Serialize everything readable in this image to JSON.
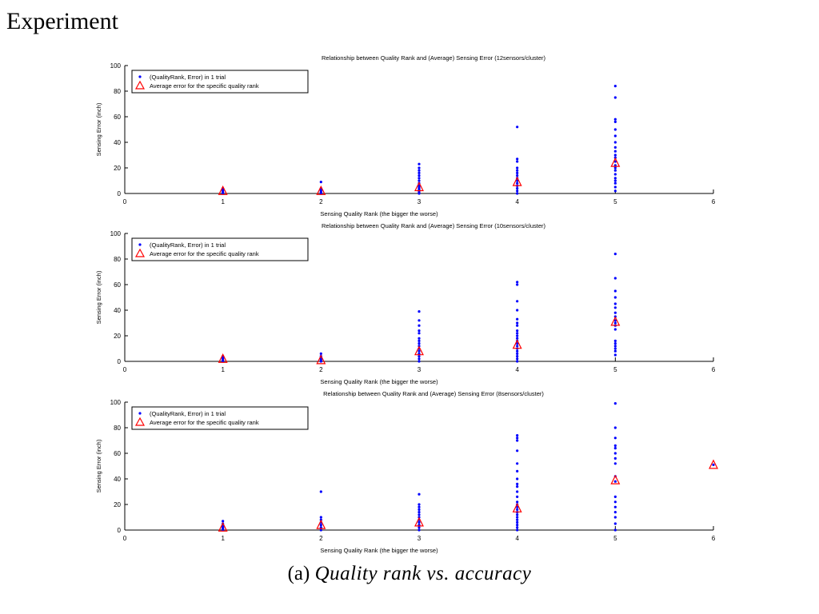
{
  "page": {
    "heading": "Experiment",
    "caption_label": "(a)",
    "caption_text": "Quality rank vs. accuracy"
  },
  "colors": {
    "points": "#0000ff",
    "averages": "#ff0000",
    "axes": "#000000"
  },
  "chart_data": [
    {
      "type": "scatter",
      "title": "Relationship between Quality Rank and (Average) Sensing Error (12sensors/cluster)",
      "xlabel": "Sensing Quality Rank (the bigger the worse)",
      "ylabel": "Sensing Error (inch)",
      "xlim": [
        0,
        6
      ],
      "ylim": [
        0,
        100
      ],
      "xticks": [
        "0",
        "1",
        "2",
        "3",
        "4",
        "5",
        "6"
      ],
      "yticks": [
        "0",
        "20",
        "40",
        "60",
        "80",
        "100"
      ],
      "legend": [
        "(QualityRank, Error) in 1 trial",
        "Average error for the specific quality rank"
      ],
      "legend_position": "top-left",
      "series": [
        {
          "marker": "dot",
          "points": [
            [
              1,
              0
            ],
            [
              1,
              1
            ],
            [
              1,
              2
            ],
            [
              1,
              3
            ],
            [
              1,
              4
            ],
            [
              2,
              0
            ],
            [
              2,
              1
            ],
            [
              2,
              2
            ],
            [
              2,
              3
            ],
            [
              2,
              4
            ],
            [
              2,
              9
            ],
            [
              3,
              0
            ],
            [
              3,
              1
            ],
            [
              3,
              2
            ],
            [
              3,
              3
            ],
            [
              3,
              4
            ],
            [
              3,
              5
            ],
            [
              3,
              6
            ],
            [
              3,
              8
            ],
            [
              3,
              10
            ],
            [
              3,
              12
            ],
            [
              3,
              14
            ],
            [
              3,
              16
            ],
            [
              3,
              18
            ],
            [
              3,
              20
            ],
            [
              3,
              23
            ],
            [
              4,
              0
            ],
            [
              4,
              2
            ],
            [
              4,
              4
            ],
            [
              4,
              6
            ],
            [
              4,
              8
            ],
            [
              4,
              10
            ],
            [
              4,
              12
            ],
            [
              4,
              14
            ],
            [
              4,
              16
            ],
            [
              4,
              18
            ],
            [
              4,
              20
            ],
            [
              4,
              25
            ],
            [
              4,
              27
            ],
            [
              4,
              52
            ],
            [
              5,
              2
            ],
            [
              5,
              5
            ],
            [
              5,
              8
            ],
            [
              5,
              10
            ],
            [
              5,
              12
            ],
            [
              5,
              15
            ],
            [
              5,
              18
            ],
            [
              5,
              20
            ],
            [
              5,
              22
            ],
            [
              5,
              25
            ],
            [
              5,
              28
            ],
            [
              5,
              30
            ],
            [
              5,
              33
            ],
            [
              5,
              36
            ],
            [
              5,
              40
            ],
            [
              5,
              45
            ],
            [
              5,
              50
            ],
            [
              5,
              56
            ],
            [
              5,
              58
            ],
            [
              5,
              75
            ],
            [
              5,
              84
            ]
          ]
        },
        {
          "marker": "triangle",
          "points": [
            [
              1,
              2
            ],
            [
              2,
              2
            ],
            [
              3,
              5
            ],
            [
              4,
              9
            ],
            [
              5,
              24
            ]
          ]
        }
      ]
    },
    {
      "type": "scatter",
      "title": "Relationship between Quality Rank and (Average) Sensing Error (10sensors/cluster)",
      "xlabel": "Sensing Quality Rank (the bigger the worse)",
      "ylabel": "Sensing Error (inch)",
      "xlim": [
        0,
        6
      ],
      "ylim": [
        0,
        100
      ],
      "xticks": [
        "0",
        "1",
        "2",
        "3",
        "4",
        "5",
        "6"
      ],
      "yticks": [
        "0",
        "20",
        "40",
        "60",
        "80",
        "100"
      ],
      "legend": [
        "(QualityRank, Error) in 1 trial",
        "Average error for the specific quality rank"
      ],
      "legend_position": "top-left",
      "series": [
        {
          "marker": "dot",
          "points": [
            [
              1,
              0
            ],
            [
              1,
              1
            ],
            [
              1,
              2
            ],
            [
              1,
              3
            ],
            [
              1,
              4
            ],
            [
              2,
              0
            ],
            [
              2,
              1
            ],
            [
              2,
              2
            ],
            [
              2,
              3
            ],
            [
              2,
              4
            ],
            [
              2,
              6
            ],
            [
              3,
              0
            ],
            [
              3,
              2
            ],
            [
              3,
              4
            ],
            [
              3,
              6
            ],
            [
              3,
              8
            ],
            [
              3,
              10
            ],
            [
              3,
              12
            ],
            [
              3,
              14
            ],
            [
              3,
              16
            ],
            [
              3,
              18
            ],
            [
              3,
              22
            ],
            [
              3,
              24
            ],
            [
              3,
              28
            ],
            [
              3,
              32
            ],
            [
              3,
              39
            ],
            [
              4,
              0
            ],
            [
              4,
              2
            ],
            [
              4,
              4
            ],
            [
              4,
              6
            ],
            [
              4,
              8
            ],
            [
              4,
              10
            ],
            [
              4,
              12
            ],
            [
              4,
              14
            ],
            [
              4,
              16
            ],
            [
              4,
              18
            ],
            [
              4,
              20
            ],
            [
              4,
              22
            ],
            [
              4,
              24
            ],
            [
              4,
              28
            ],
            [
              4,
              30
            ],
            [
              4,
              33
            ],
            [
              4,
              40
            ],
            [
              4,
              47
            ],
            [
              4,
              60
            ],
            [
              4,
              62
            ],
            [
              5,
              5
            ],
            [
              5,
              8
            ],
            [
              5,
              10
            ],
            [
              5,
              12
            ],
            [
              5,
              14
            ],
            [
              5,
              16
            ],
            [
              5,
              25
            ],
            [
              5,
              28
            ],
            [
              5,
              30
            ],
            [
              5,
              32
            ],
            [
              5,
              35
            ],
            [
              5,
              38
            ],
            [
              5,
              42
            ],
            [
              5,
              45
            ],
            [
              5,
              50
            ],
            [
              5,
              55
            ],
            [
              5,
              65
            ],
            [
              5,
              84
            ]
          ]
        },
        {
          "marker": "triangle",
          "points": [
            [
              1,
              2
            ],
            [
              2,
              1
            ],
            [
              3,
              8
            ],
            [
              4,
              13
            ],
            [
              5,
              31
            ]
          ]
        }
      ]
    },
    {
      "type": "scatter",
      "title": "Relationship between Quality Rank and (Average) Sensing Error (8sensors/cluster)",
      "xlabel": "Sensing Quality Rank (the bigger the worse)",
      "ylabel": "Sensing Error (inch)",
      "xlim": [
        0,
        6
      ],
      "ylim": [
        0,
        100
      ],
      "xticks": [
        "0",
        "1",
        "2",
        "3",
        "4",
        "5",
        "6"
      ],
      "yticks": [
        "0",
        "20",
        "40",
        "60",
        "80",
        "100"
      ],
      "legend": [
        "(QualityRank, Error) in 1 trial",
        "Average error for the specific quality rank"
      ],
      "legend_position": "top-left",
      "series": [
        {
          "marker": "dot",
          "points": [
            [
              1,
              0
            ],
            [
              1,
              1
            ],
            [
              1,
              2
            ],
            [
              1,
              3
            ],
            [
              1,
              4
            ],
            [
              1,
              5
            ],
            [
              1,
              7
            ],
            [
              2,
              0
            ],
            [
              2,
              2
            ],
            [
              2,
              4
            ],
            [
              2,
              6
            ],
            [
              2,
              8
            ],
            [
              2,
              10
            ],
            [
              2,
              30
            ],
            [
              3,
              0
            ],
            [
              3,
              2
            ],
            [
              3,
              4
            ],
            [
              3,
              6
            ],
            [
              3,
              8
            ],
            [
              3,
              10
            ],
            [
              3,
              12
            ],
            [
              3,
              14
            ],
            [
              3,
              16
            ],
            [
              3,
              18
            ],
            [
              3,
              20
            ],
            [
              3,
              28
            ],
            [
              4,
              0
            ],
            [
              4,
              2
            ],
            [
              4,
              4
            ],
            [
              4,
              6
            ],
            [
              4,
              8
            ],
            [
              4,
              10
            ],
            [
              4,
              12
            ],
            [
              4,
              14
            ],
            [
              4,
              16
            ],
            [
              4,
              18
            ],
            [
              4,
              20
            ],
            [
              4,
              22
            ],
            [
              4,
              26
            ],
            [
              4,
              30
            ],
            [
              4,
              34
            ],
            [
              4,
              36
            ],
            [
              4,
              40
            ],
            [
              4,
              46
            ],
            [
              4,
              52
            ],
            [
              4,
              62
            ],
            [
              4,
              70
            ],
            [
              4,
              72
            ],
            [
              4,
              74
            ],
            [
              5,
              0
            ],
            [
              5,
              5
            ],
            [
              5,
              10
            ],
            [
              5,
              14
            ],
            [
              5,
              18
            ],
            [
              5,
              22
            ],
            [
              5,
              26
            ],
            [
              5,
              38
            ],
            [
              5,
              42
            ],
            [
              5,
              52
            ],
            [
              5,
              56
            ],
            [
              5,
              60
            ],
            [
              5,
              64
            ],
            [
              5,
              66
            ],
            [
              5,
              72
            ],
            [
              5,
              80
            ],
            [
              5,
              99
            ],
            [
              6,
              51
            ]
          ]
        },
        {
          "marker": "triangle",
          "points": [
            [
              1,
              2
            ],
            [
              2,
              4
            ],
            [
              3,
              6
            ],
            [
              4,
              17
            ],
            [
              5,
              39
            ],
            [
              6,
              51
            ]
          ]
        }
      ]
    }
  ]
}
